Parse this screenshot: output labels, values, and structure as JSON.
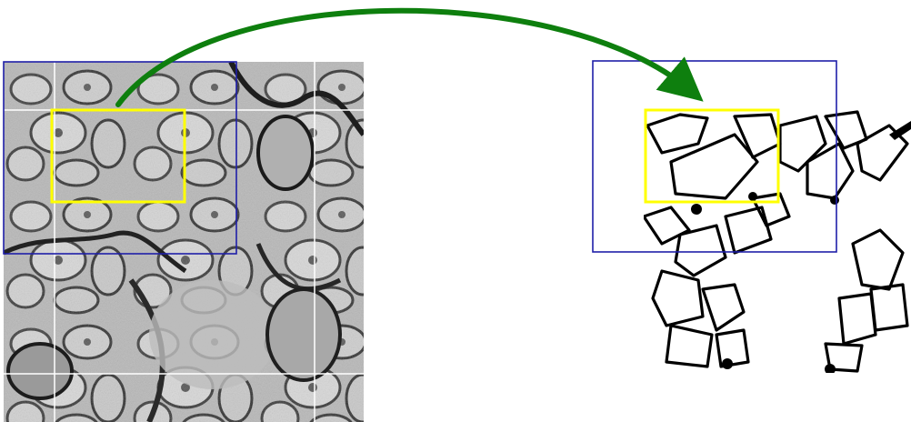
{
  "figure": {
    "panels": [
      {
        "name": "em-micrograph",
        "kind": "grayscale electron micrograph (mirrored tiles)"
      },
      {
        "name": "segmentation-map",
        "kind": "binary membrane segmentation"
      }
    ],
    "arrow": {
      "direction": "left-to-right",
      "color": "#0e7f0e"
    },
    "outer_box_color": "#1f1fa8",
    "inner_box_color": "#ffff00",
    "text_labels": []
  }
}
